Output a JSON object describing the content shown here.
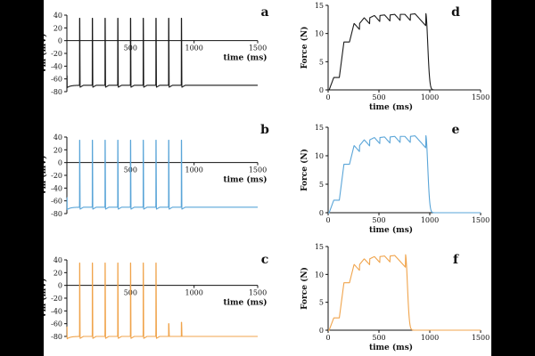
{
  "chart_data": [
    {
      "panel": "a",
      "type": "line",
      "color": "#1a1a1a",
      "xlabel": "time (ms)",
      "ylabel": "Vm (mV)",
      "xlim": [
        0,
        1500
      ],
      "ylim": [
        -80,
        40
      ],
      "xticks": [
        "500",
        "1000",
        "1500"
      ],
      "yticks": [
        "40",
        "20",
        "0",
        "-20",
        "-40",
        "-60",
        "-80"
      ],
      "rest_potential": -70,
      "spike_peak": 35,
      "spike_times": [
        100,
        200,
        300,
        400,
        500,
        600,
        700,
        800,
        900
      ],
      "end_time": 1500
    },
    {
      "panel": "b",
      "type": "line",
      "color": "#5aa5d8",
      "xlabel": "time (ms)",
      "ylabel": "Vm (mV)",
      "xlim": [
        0,
        1500
      ],
      "ylim": [
        -80,
        40
      ],
      "xticks": [
        "500",
        "1000",
        "1500"
      ],
      "yticks": [
        "40",
        "20",
        "0",
        "-20",
        "-40",
        "-60",
        "-80"
      ],
      "rest_potential": -70,
      "spike_peak": 35,
      "spike_times": [
        100,
        200,
        300,
        400,
        500,
        600,
        700,
        800,
        900
      ],
      "end_time": 1500
    },
    {
      "panel": "c",
      "type": "line",
      "color": "#f0a44c",
      "xlabel": "time (ms)",
      "ylabel": "Vm (mV)",
      "xlim": [
        0,
        1500
      ],
      "ylim": [
        -80,
        40
      ],
      "xticks": [
        "500",
        "1000",
        "1500"
      ],
      "yticks": [
        "40",
        "20",
        "0",
        "-20",
        "-40",
        "-60",
        "-80"
      ],
      "rest_potential": -80,
      "spike_peak": 35,
      "spike_times": [
        100,
        200,
        300,
        400,
        500,
        600,
        700
      ],
      "small_spikes": [
        {
          "t": 800,
          "peak": -60
        },
        {
          "t": 900,
          "peak": -58
        }
      ],
      "end_time": 1500
    },
    {
      "panel": "d",
      "type": "line",
      "color": "#1a1a1a",
      "xlabel": "time (ms)",
      "ylabel": "Force (N)",
      "xlim": [
        0,
        1500
      ],
      "ylim": [
        0,
        15
      ],
      "xticks": [
        "0",
        "500",
        "1000",
        "1500"
      ],
      "yticks": [
        "0",
        "5",
        "10",
        "15"
      ],
      "twitch_times": [
        100,
        200,
        300,
        400,
        500,
        600,
        700,
        800,
        900
      ],
      "plateau_max": 13.6,
      "release_time": 960,
      "end_time": 1500
    },
    {
      "panel": "e",
      "type": "line",
      "color": "#5aa5d8",
      "xlabel": "time (ms)",
      "ylabel": "Force (N)",
      "xlim": [
        0,
        1500
      ],
      "ylim": [
        0,
        15
      ],
      "xticks": [
        "0",
        "500",
        "1000",
        "1500"
      ],
      "yticks": [
        "0",
        "5",
        "10",
        "15"
      ],
      "twitch_times": [
        100,
        200,
        300,
        400,
        500,
        600,
        700,
        800,
        900
      ],
      "plateau_max": 13.6,
      "release_time": 960,
      "end_time": 1500
    },
    {
      "panel": "f",
      "type": "line",
      "color": "#f0a44c",
      "xlabel": "time (ms)",
      "ylabel": "Force (N)",
      "xlim": [
        0,
        1500
      ],
      "ylim": [
        0,
        15
      ],
      "xticks": [
        "0",
        "500",
        "1000",
        "1500"
      ],
      "yticks": [
        "0",
        "5",
        "10",
        "15"
      ],
      "twitch_times": [
        100,
        200,
        300,
        400,
        500,
        600,
        700
      ],
      "plateau_max": 13.6,
      "release_time": 760,
      "end_time": 1500
    }
  ]
}
